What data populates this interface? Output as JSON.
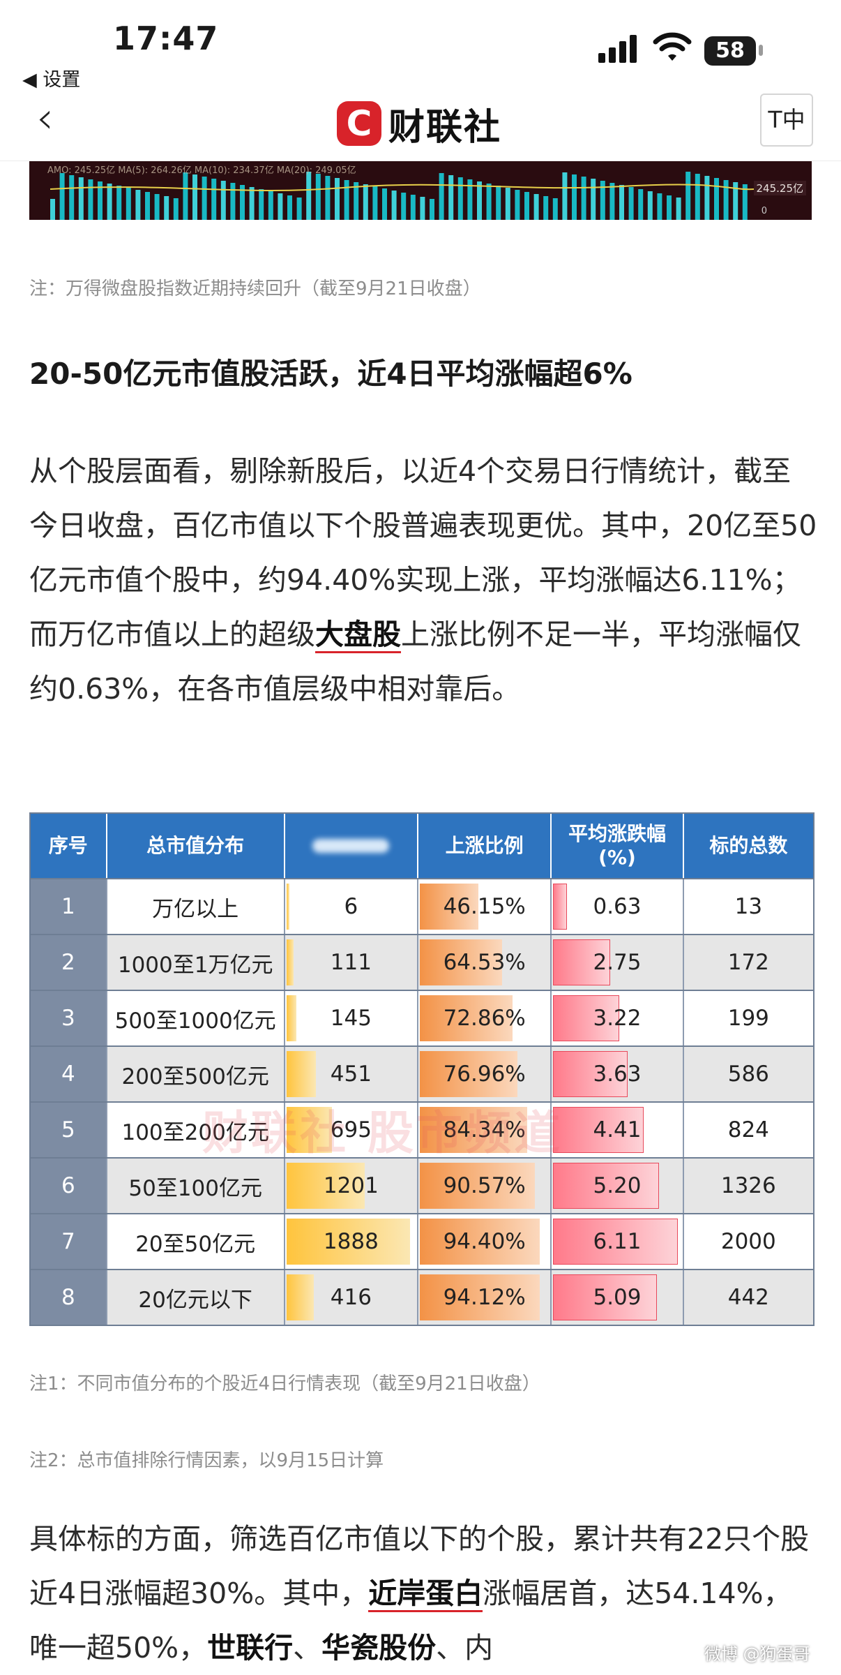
{
  "status_bar": {
    "time": "17:47",
    "back_app": "◀ 设置",
    "battery": "58"
  },
  "nav": {
    "back_glyph": "‹",
    "logo_mark": "C",
    "logo_text": "财联社",
    "font_button": "T中"
  },
  "chart_strip": {
    "amo_text": "AMO: 245.25亿  MA(5): 264.26亿  MA(10): 234.37亿  MA(20): 249.05亿",
    "price_tag": "245.25亿",
    "zero_label": "0"
  },
  "note1": "注：万得微盘股指数近期持续回升（截至9月21日收盘）",
  "heading": "20-50亿元市值股活跃，近4日平均涨幅超6%",
  "para1": {
    "part1": "从个股层面看，剔除新股后，以近4个交易日行情统计，截至今日收盘，百亿市值以下个股普遍表现更优。其中，20亿至50亿元市值个股中，约94.40%实现上涨，平均涨幅达6.11%；而万亿市值以上的超级",
    "highlight": "大盘股",
    "part2": "上涨比例不足一半，平均涨幅仅约0.63%，在各市值层级中相对靠后。"
  },
  "table": {
    "headers": [
      "序号",
      "总市值分布",
      "上涨比例",
      "平均涨跌幅\n(%)",
      "标的总数"
    ],
    "rows": [
      {
        "idx": "1",
        "range": "万亿以上",
        "count": "6",
        "up_ratio": "46.15%",
        "avg_change": "0.63",
        "total": "13"
      },
      {
        "idx": "2",
        "range": "1000至1万亿元",
        "count": "111",
        "up_ratio": "64.53%",
        "avg_change": "2.75",
        "total": "172"
      },
      {
        "idx": "3",
        "range": "500至1000亿元",
        "count": "145",
        "up_ratio": "72.86%",
        "avg_change": "3.22",
        "total": "199"
      },
      {
        "idx": "4",
        "range": "200至500亿元",
        "count": "451",
        "up_ratio": "76.96%",
        "avg_change": "3.63",
        "total": "586"
      },
      {
        "idx": "5",
        "range": "100至200亿元",
        "count": "695",
        "up_ratio": "84.34%",
        "avg_change": "4.41",
        "total": "824"
      },
      {
        "idx": "6",
        "range": "50至100亿元",
        "count": "1201",
        "up_ratio": "90.57%",
        "avg_change": "5.20",
        "total": "1326"
      },
      {
        "idx": "7",
        "range": "20至50亿元",
        "count": "1888",
        "up_ratio": "94.40%",
        "avg_change": "6.11",
        "total": "2000"
      },
      {
        "idx": "8",
        "range": "20亿元以下",
        "count": "416",
        "up_ratio": "94.12%",
        "avg_change": "5.09",
        "total": "442"
      }
    ],
    "watermark": "财联社 股市频道"
  },
  "note2": "注1：不同市值分布的个股近4日行情表现（截至9月21日收盘）",
  "note3": "注2：总市值排除行情因素，以9月15日计算",
  "para2": {
    "part1": "具体标的方面，筛选百亿市值以下的个股，累计共有22只个股近4日涨幅超30%。其中，",
    "highlight1": "近岸蛋白",
    "part2": "涨幅居首，达54.14%，唯一超50%，",
    "highlight2": "世联行",
    "part3": "、",
    "highlight3": "华瓷股份",
    "part4": "、内"
  },
  "weibo_mark": "微博 @狗蛋哥"
}
